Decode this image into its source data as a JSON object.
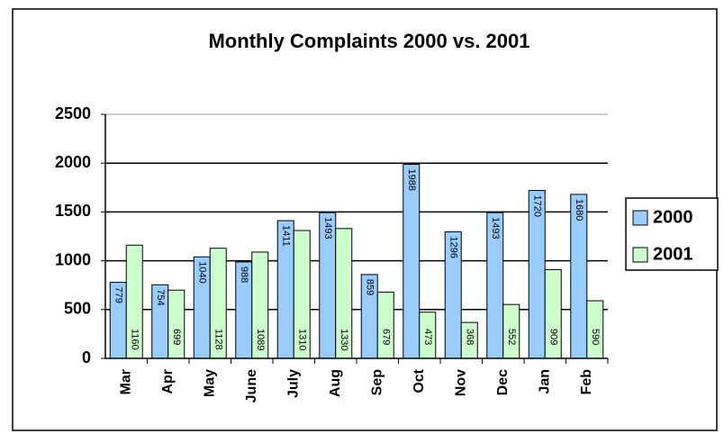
{
  "chart_data": {
    "type": "bar",
    "title": "Monthly Complaints 2000 vs. 2001",
    "categories": [
      "Mar",
      "Apr",
      "May",
      "June",
      "July",
      "Aug",
      "Sep",
      "Oct",
      "Nov",
      "Dec",
      "Jan",
      "Feb"
    ],
    "series": [
      {
        "name": "2000",
        "color": "#99ccff",
        "values": [
          779,
          754,
          1040,
          988,
          1411,
          1493,
          859,
          1988,
          1296,
          1493,
          1720,
          1680
        ]
      },
      {
        "name": "2001",
        "color": "#ccffcc",
        "values": [
          1160,
          699,
          1128,
          1089,
          1310,
          1330,
          679,
          473,
          368,
          552,
          909,
          590
        ]
      }
    ],
    "ylim": [
      0,
      2500
    ],
    "yticks": [
      0,
      500,
      1000,
      1500,
      2000,
      2500
    ],
    "grid": true,
    "legend": "right"
  }
}
